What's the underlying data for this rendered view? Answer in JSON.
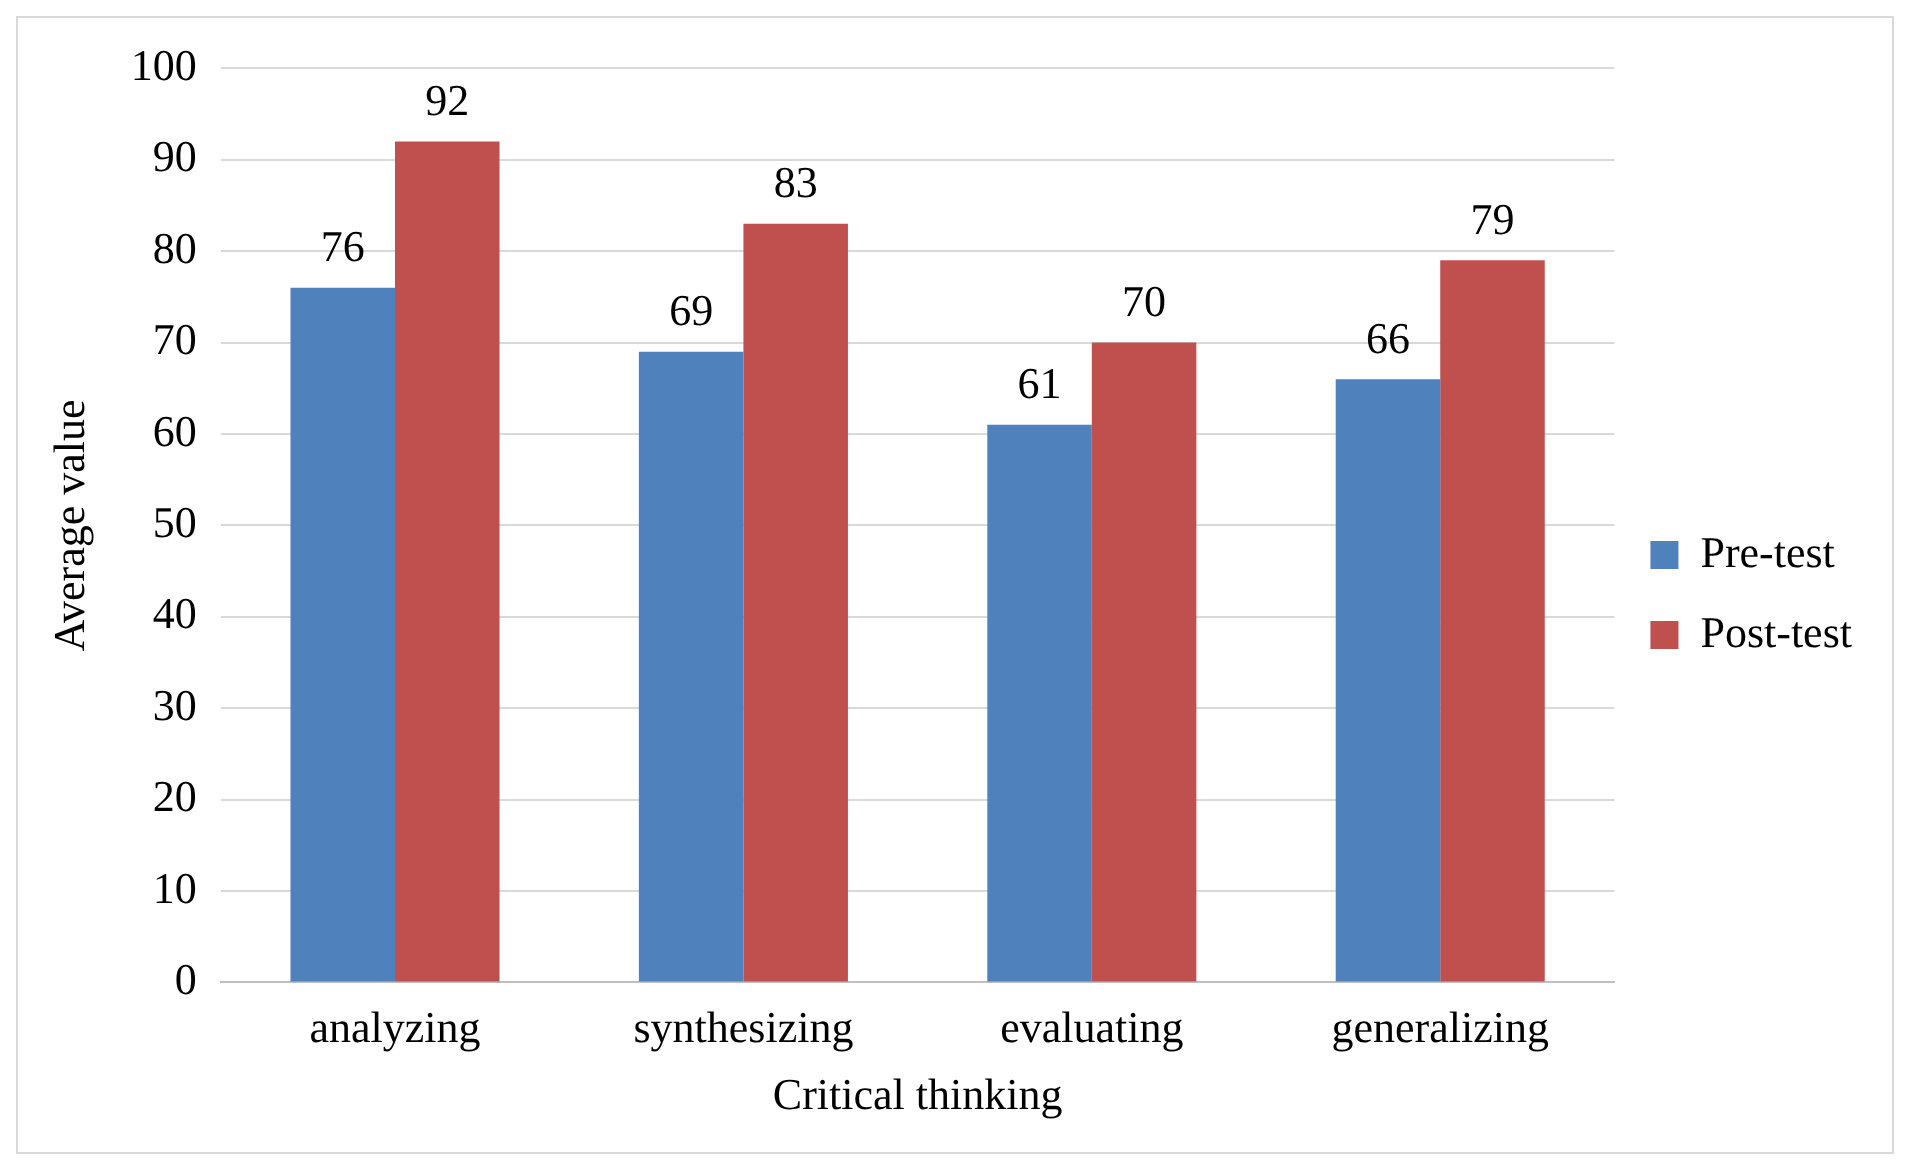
{
  "chart_data": {
    "type": "bar",
    "xlabel": "Critical thinking",
    "ylabel": "Average value",
    "categories": [
      "analyzing",
      "synthesizing",
      "evaluating",
      "generalizing"
    ],
    "series": [
      {
        "name": "Pre-test",
        "color": "#4f81bd",
        "values": [
          76,
          69,
          61,
          66
        ]
      },
      {
        "name": "Post-test",
        "color": "#c0504d",
        "values": [
          92,
          83,
          70,
          79
        ]
      }
    ],
    "ylim": [
      0,
      100
    ],
    "yticks": [
      0,
      10,
      20,
      30,
      40,
      50,
      60,
      70,
      80,
      90,
      100
    ],
    "grid": "y",
    "legend": "right",
    "data_labels": true
  }
}
